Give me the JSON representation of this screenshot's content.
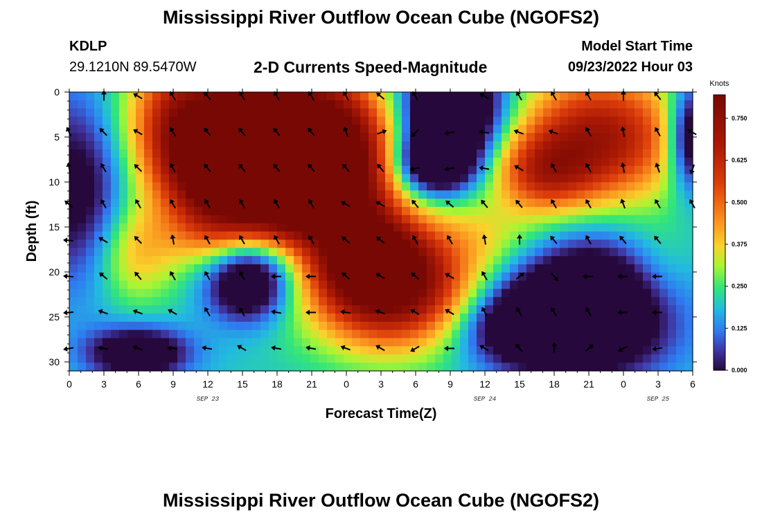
{
  "header": {
    "title": "Mississippi River Outflow Ocean Cube (NGOFS2)",
    "station_id": "KDLP",
    "station_coords": "29.1210N  89.5470W",
    "subtitle": "2-D Currents Speed-Magnitude",
    "model_start_label": "Model Start Time",
    "model_start_value": "09/23/2022 Hour 03"
  },
  "footer": {
    "title": "Mississippi River Outflow Ocean Cube (NGOFS2)"
  },
  "chart_data": {
    "type": "heatmap",
    "xlabel": "Forecast Time(Z)",
    "ylabel": "Depth (ft)",
    "x_tick_labels": [
      "0",
      "3",
      "6",
      "9",
      "12",
      "15",
      "18",
      "21",
      "0",
      "3",
      "6",
      "9",
      "12",
      "15",
      "18",
      "21",
      "0",
      "3",
      "6"
    ],
    "x_range_hours": [
      0,
      54
    ],
    "y_tick_labels": [
      "0",
      "5",
      "10",
      "15",
      "20",
      "25",
      "30"
    ],
    "y_range_ft": [
      0,
      31
    ],
    "day_labels": [
      {
        "label": "SEP 23",
        "hour": 12
      },
      {
        "label": "SEP 24",
        "hour": 36
      },
      {
        "label": "SEP 25",
        "hour": 51
      }
    ],
    "colorbar": {
      "unit": "Knots",
      "ticks": [
        "0.000",
        "0.125",
        "0.250",
        "0.375",
        "0.500",
        "0.625",
        "0.750"
      ],
      "range": [
        0,
        0.82
      ]
    },
    "speed_hotspots": [
      {
        "hour": 16,
        "depth": 4,
        "speed": 0.86,
        "sx": 7,
        "sy": 6
      },
      {
        "hour": 22,
        "depth": 8,
        "speed": 0.8,
        "sx": 4,
        "sy": 5
      },
      {
        "hour": 13,
        "depth": 8,
        "speed": 0.75,
        "sx": 3,
        "sy": 4
      },
      {
        "hour": 20,
        "depth": 13,
        "speed": 0.58,
        "sx": 5,
        "sy": 3
      },
      {
        "hour": 28,
        "depth": 22,
        "speed": 0.82,
        "sx": 5,
        "sy": 4.5
      },
      {
        "hour": 26,
        "depth": 18.5,
        "speed": 0.7,
        "sx": 3,
        "sy": 3
      },
      {
        "hour": 46,
        "depth": 5,
        "speed": 0.7,
        "sx": 5,
        "sy": 5
      },
      {
        "hour": 41,
        "depth": 9,
        "speed": 0.5,
        "sx": 3,
        "sy": 3
      },
      {
        "hour": 5.5,
        "depth": 18,
        "speed": 0.4,
        "sx": 2.5,
        "sy": 4
      },
      {
        "hour": 12,
        "depth": 16,
        "speed": 0.36,
        "sx": 3,
        "sy": 3
      },
      {
        "hour": 36,
        "depth": 16,
        "speed": 0.32,
        "sx": 4,
        "sy": 3
      },
      {
        "hour": 9,
        "depth": 2,
        "speed": 0.32,
        "sx": 2,
        "sy": 5
      },
      {
        "hour": 51,
        "depth": 20,
        "speed": 0.3,
        "sx": 2.5,
        "sy": 4
      },
      {
        "hour": 33,
        "depth": 2,
        "speed": -0.35,
        "sx": 3,
        "sy": 4
      },
      {
        "hour": 31.5,
        "depth": 8,
        "speed": -0.2,
        "sx": 2.5,
        "sy": 2.5
      },
      {
        "hour": 15.5,
        "depth": 21,
        "speed": -0.2,
        "sx": 2.5,
        "sy": 3
      },
      {
        "hour": 45,
        "depth": 24,
        "speed": -0.3,
        "sx": 5,
        "sy": 5
      },
      {
        "hour": 6,
        "depth": 29,
        "speed": -0.15,
        "sx": 3,
        "sy": 2
      },
      {
        "hour": 54,
        "depth": 5,
        "speed": -0.2,
        "sx": 1.5,
        "sy": 4
      },
      {
        "hour": 1,
        "depth": 10,
        "speed": -0.08,
        "sx": 3,
        "sy": 8
      },
      {
        "hour": 39,
        "depth": 26,
        "speed": -0.08,
        "sx": 4,
        "sy": 3
      }
    ],
    "vector_hours": [
      0,
      3,
      6,
      9,
      12,
      15,
      18,
      21,
      24,
      27,
      30,
      33,
      36,
      39,
      42,
      45,
      48,
      51,
      54
    ],
    "vector_depths": [
      0.5,
      4.5,
      8.5,
      12.5,
      16.5,
      20.5,
      24.5,
      28.5
    ],
    "vector_directions_deg": [
      [
        null,
        180,
        120,
        150,
        140,
        150,
        150,
        150,
        150,
        130,
        150,
        null,
        120,
        150,
        150,
        150,
        180,
        140,
        null
      ],
      [
        155,
        135,
        120,
        150,
        140,
        140,
        140,
        140,
        160,
        250,
        45,
        80,
        100,
        110,
        110,
        150,
        170,
        150,
        120
      ],
      [
        170,
        150,
        135,
        150,
        140,
        140,
        140,
        140,
        140,
        140,
        80,
        80,
        100,
        120,
        150,
        150,
        170,
        160,
        20
      ],
      [
        130,
        150,
        150,
        150,
        150,
        150,
        150,
        150,
        120,
        120,
        140,
        130,
        140,
        140,
        150,
        150,
        160,
        150,
        150
      ],
      [
        95,
        120,
        135,
        170,
        150,
        150,
        150,
        150,
        130,
        130,
        150,
        150,
        170,
        180,
        140,
        150,
        140,
        140,
        null
      ],
      [
        95,
        130,
        140,
        150,
        150,
        150,
        90,
        90,
        130,
        120,
        130,
        120,
        150,
        230,
        320,
        90,
        90,
        90,
        null
      ],
      [
        85,
        110,
        110,
        120,
        150,
        150,
        100,
        90,
        100,
        110,
        120,
        120,
        150,
        150,
        150,
        150,
        90,
        90,
        null
      ],
      [
        80,
        100,
        110,
        95,
        100,
        120,
        100,
        100,
        110,
        120,
        60,
        90,
        120,
        140,
        180,
        230,
        60,
        80,
        null
      ]
    ]
  }
}
